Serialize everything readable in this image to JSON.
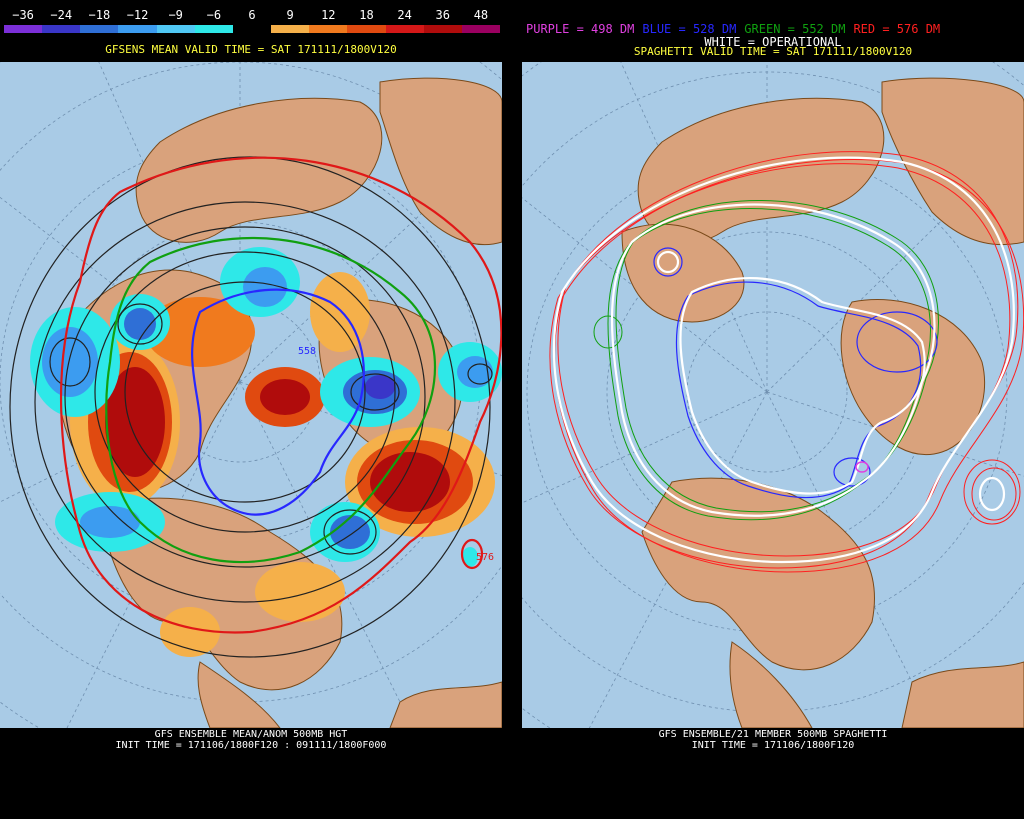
{
  "colorbar": {
    "labels": [
      "−36",
      "−24",
      "−18",
      "−12",
      "−9",
      "−6",
      "6",
      "9",
      "12",
      "18",
      "24",
      "36",
      "48"
    ],
    "colors": [
      "#7b2fd8",
      "#3a36c8",
      "#2f6fd6",
      "#3c9cf0",
      "#50c8f5",
      "#2ee8e8",
      "#000000",
      "#f5b04a",
      "#f07a1e",
      "#e04a10",
      "#d41818",
      "#b00c0c",
      "#9a0060"
    ]
  },
  "left": {
    "valid_time": "GFSENS MEAN VALID TIME = SAT 171111/1800V120",
    "footer_title": "GFS ENSEMBLE MEAN/ANOM 500MB HGT",
    "footer_init": "INIT TIME = 171106/1800F120 : 091111/1800F000",
    "contour_label_1": "576",
    "contour_label_2": "558"
  },
  "right": {
    "legend": [
      {
        "text": "PURPLE = 498 DM",
        "color": "#e040e0"
      },
      {
        "text": "BLUE = 528 DM",
        "color": "#2828ff"
      },
      {
        "text": "GREEN = 552 DM",
        "color": "#10a010"
      },
      {
        "text": "RED = 576 DM",
        "color": "#ff2020"
      }
    ],
    "white_label": "WHITE = OPERATIONAL",
    "valid_time": "SPAGHETTI VALID TIME = SAT 171111/1800V120",
    "footer_title": "GFS ENSEMBLE/21 MEMBER 500MB SPAGHETTI",
    "footer_init": "INIT TIME = 171106/1800F120"
  },
  "colors": {
    "ocean": "#a9cbe6",
    "land": "#d9a27c",
    "border": "#7a4a1a"
  }
}
